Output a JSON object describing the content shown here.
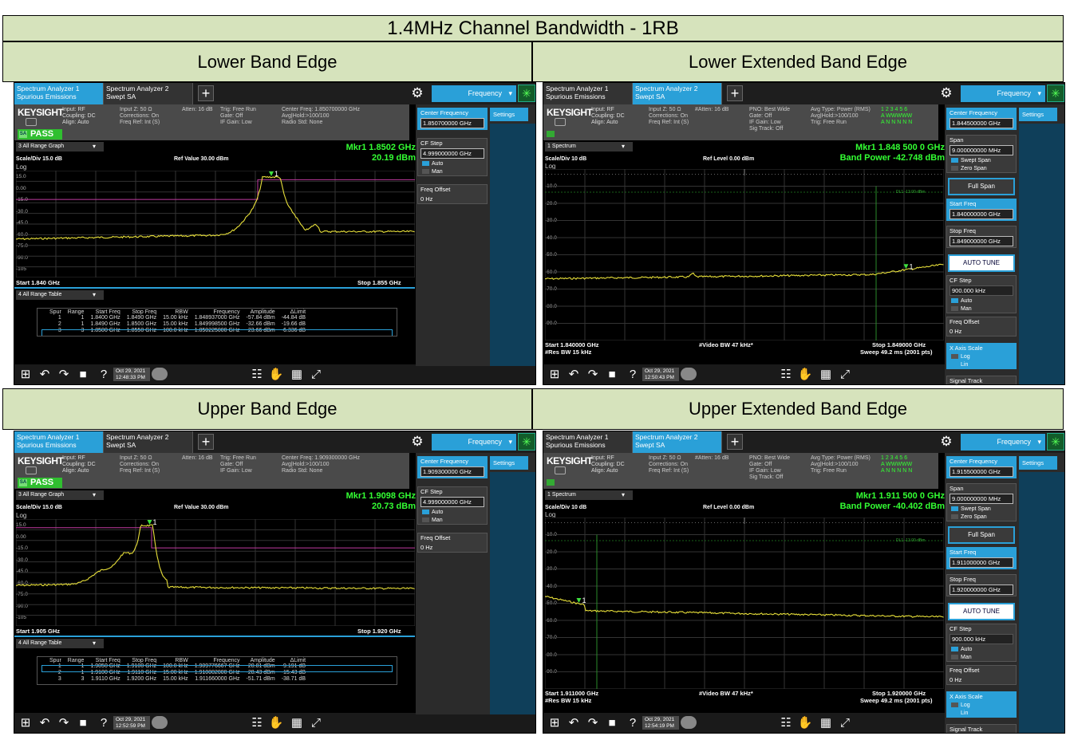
{
  "title": "1.4MHz Channel Bandwidth - 1RB",
  "headers": {
    "lower": "Lower Band Edge",
    "lower_ext": "Lower Extended Band Edge",
    "upper": "Upper Band Edge",
    "upper_ext": "Upper Extended Band Edge"
  },
  "colors": {
    "trace": "#e8e03a",
    "marker": "#3fe03f",
    "limit": "#c03aa0",
    "accent": "#2aa0d8",
    "pass": "#2fbf2f"
  },
  "common": {
    "tab1": "Spectrum Analyzer 1\nSpurious Emissions",
    "tab2": "Spectrum Analyzer 2\nSwept SA",
    "add": "+",
    "gear_icon": "gear-icon",
    "menu": "Frequency",
    "brand": "KEYSIGHT",
    "settings": "Settings",
    "pass": "PASS"
  },
  "lower": {
    "info": {
      "c1": "Input: RF\nCoupling: DC\nAlign: Auto",
      "c2": "Input Z: 50 Ω\nCorrections: On\nFreq Ref: Int (S)",
      "c3": "Atten: 16 dB",
      "c4": "Trig: Free Run\nGate: Off\nIF Gain: Low",
      "c5": "Center Freq: 1.850700000 GHz\nAvg|Hold:>100/100\nRadio Std: None"
    },
    "graph_sel": "3 All Range Graph",
    "mkr": "Mkr1  1.8502 GHz",
    "mkr_val": "20.19 dBm",
    "scale": "Scale/Div 15.0 dB",
    "ref": "Ref Value 30.00 dBm",
    "log": "Log",
    "ylabels": [
      "15.0",
      "0.00",
      "-15.0",
      "-30.0",
      "-45.0",
      "-60.0",
      "-75.0",
      "-90.0",
      "-105"
    ],
    "start": "Start 1.840 GHz",
    "stop": "Stop 1.855 GHz",
    "table_sel": "4 All Range Table",
    "table": {
      "headers": [
        "Spur",
        "Range",
        "Start Freq",
        "Stop Freq",
        "RBW",
        "Frequency",
        "Amplitude",
        "ΔLimit"
      ],
      "rows": [
        [
          "1",
          "1",
          "1.8400 GHz",
          "1.8490 GHz",
          "15.00 kHz",
          "1.848937000 GHz",
          "-57.84 dBm",
          "-44.84 dB"
        ],
        [
          "2",
          "1",
          "1.8490 GHz",
          "1.8500 GHz",
          "15.00 kHz",
          "1.849998500 GHz",
          "-32.66 dBm",
          "-19.66 dB"
        ],
        [
          "3",
          "3",
          "1.8500 GHz",
          "1.8550 GHz",
          "100.0 kHz",
          "1.850225000 GHz",
          "23.66 dBm",
          "-6.336 dB"
        ]
      ]
    },
    "side": {
      "cf_label": "Center Frequency",
      "cf_val": "1.850700000 GHz",
      "step_label": "CF Step",
      "step_val": "4.999000000 GHz",
      "auto": "Auto",
      "man": "Man",
      "offset_label": "Freq Offset",
      "offset_val": "0 Hz"
    },
    "date": "Oct 29, 2021\n12:48:33 PM"
  },
  "upper": {
    "info": {
      "c1": "Input: RF\nCoupling: DC\nAlign: Auto",
      "c2": "Input Z: 50 Ω\nCorrections: On\nFreq Ref: Int (S)",
      "c3": "Atten: 16 dB",
      "c4": "Trig: Free Run\nGate: Off\nIF Gain: Low",
      "c5": "Center Freq: 1.909300000 GHz\nAvg|Hold:>100/100\nRadio Std: None"
    },
    "graph_sel": "3 All Range Graph",
    "mkr": "Mkr1  1.9098 GHz",
    "mkr_val": "20.73 dBm",
    "scale": "Scale/Div 15.0 dB",
    "ref": "Ref Value 30.00 dBm",
    "log": "Log",
    "ylabels": [
      "15.0",
      "0.00",
      "-15.0",
      "-30.0",
      "-45.0",
      "-60.0",
      "-75.0",
      "-90.0",
      "-105"
    ],
    "start": "Start 1.905 GHz",
    "stop": "Stop 1.920 GHz",
    "table_sel": "4 All Range Table",
    "table": {
      "headers": [
        "Spur",
        "Range",
        "Start Freq",
        "Stop Freq",
        "RBW",
        "Frequency",
        "Amplitude",
        "ΔLimit"
      ],
      "rows": [
        [
          "1",
          "1",
          "1.9050 GHz",
          "1.9100 GHz",
          "100.0 kHz",
          "1.909776667 GHz",
          "20.81 dBm",
          "-9.191 dB"
        ],
        [
          "2",
          "1",
          "1.9100 GHz",
          "1.9110 GHz",
          "15.00 kHz",
          "1.910002000 GHz",
          "-28.43 dBm",
          "-15.43 dB"
        ],
        [
          "3",
          "3",
          "1.9110 GHz",
          "1.9200 GHz",
          "15.00 kHz",
          "1.911660000 GHz",
          "-51.71 dBm",
          "-38.71 dB"
        ]
      ]
    },
    "side": {
      "cf_label": "Center Frequency",
      "cf_val": "1.909300000 GHz",
      "step_label": "CF Step",
      "step_val": "4.999000000 GHz",
      "auto": "Auto",
      "man": "Man",
      "offset_label": "Freq Offset",
      "offset_val": "0 Hz"
    },
    "date": "Oct 29, 2021\n12:52:59 PM"
  },
  "lower_ext": {
    "info": {
      "c1": "Input: RF\nCoupling: DC\nAlign: Auto",
      "c2": "Input Z: 50 Ω\nCorrections: On\nFreq Ref: Int (S)",
      "c3": "#Atten: 16 dB",
      "c4": "PNO: Best Wide\nGate: Off\nIF Gain: Low\nSig Track: Off",
      "c5": "Avg Type: Power (RMS)\nAvg|Hold:>100/100\nTrig: Free Run",
      "trace": "1 2 3 4 5 6\nA WWWWW\nA N N N N N"
    },
    "graph_sel": "1 Spectrum",
    "mkr": "Mkr1  1.848 500 0 GHz",
    "mkr_val": "Band Power  -42.748 dBm",
    "scale": "Scale/Div 10 dB",
    "ref": "Ref Level 0.00 dBm",
    "log": "Log",
    "limit_label": "DL1 -13.00 dBm",
    "ylabels": [
      "-10.0",
      "-20.0",
      "-30.0",
      "-40.0",
      "-50.0",
      "-60.0",
      "-70.0",
      "-80.0",
      "-90.0"
    ],
    "start": "Start 1.840000 GHz",
    "res": "#Res BW 15 kHz",
    "vbw": "#Video BW 47 kHz*",
    "stop": "Stop 1.849000 GHz",
    "sweep": "Sweep 49.2 ms (2001 pts)",
    "side": {
      "cf_label": "Center Frequency",
      "cf_val": "1.844500000 GHz",
      "span_label": "Span",
      "span_val": "9.000000000 MHz",
      "swept": "Swept Span",
      "zero": "Zero Span",
      "full": "Full Span",
      "start_label": "Start Freq",
      "start_val": "1.840000000 GHz",
      "stop_label": "Stop Freq",
      "stop_val": "1.849000000 GHz",
      "autotune": "AUTO TUNE",
      "step_label": "CF Step",
      "step_val": "900.000 kHz",
      "auto": "Auto",
      "man": "Man",
      "offset_label": "Freq Offset",
      "offset_val": "0 Hz",
      "xaxis_label": "X Axis Scale",
      "xlog": "Log",
      "xlin": "Lin",
      "sigtrack": "Signal Track\n(Span Zoom)"
    },
    "date": "Oct 29, 2021\n12:50:43 PM"
  },
  "upper_ext": {
    "info": {
      "c1": "Input: RF\nCoupling: DC\nAlign: Auto",
      "c2": "Input Z: 50 Ω\nCorrections: On\nFreq Ref: Int (S)",
      "c3": "#Atten: 16 dB",
      "c4": "PNO: Best Wide\nGate: Off\nIF Gain: Low\nSig Track: Off",
      "c5": "Avg Type: Power (RMS)\nAvg|Hold:>100/100\nTrig: Free Run",
      "trace": "1 2 3 4 5 6\nA WWWWW\nA N N N N N"
    },
    "graph_sel": "1 Spectrum",
    "mkr": "Mkr1  1.911 500 0 GHz",
    "mkr_val": "Band Power  -40.402 dBm",
    "scale": "Scale/Div 10 dB",
    "ref": "Ref Level 0.00 dBm",
    "log": "Log",
    "limit_label": "DL1 -13.00 dBm",
    "ylabels": [
      "-10.0",
      "-20.0",
      "-30.0",
      "-40.0",
      "-50.0",
      "-60.0",
      "-70.0",
      "-80.0",
      "-90.0"
    ],
    "start": "Start 1.911000 GHz",
    "res": "#Res BW 15 kHz",
    "vbw": "#Video BW 47 kHz*",
    "stop": "Stop 1.920000 GHz",
    "sweep": "Sweep 49.2 ms (2001 pts)",
    "side": {
      "cf_label": "Center Frequency",
      "cf_val": "1.915500000 GHz",
      "span_label": "Span",
      "span_val": "9.000000000 MHz",
      "swept": "Swept Span",
      "zero": "Zero Span",
      "full": "Full Span",
      "start_label": "Start Freq",
      "start_val": "1.911000000 GHz",
      "stop_label": "Stop Freq",
      "stop_val": "1.920000000 GHz",
      "autotune": "AUTO TUNE",
      "step_label": "CF Step",
      "step_val": "900.000 kHz",
      "auto": "Auto",
      "man": "Man",
      "offset_label": "Freq Offset",
      "offset_val": "0 Hz",
      "xaxis_label": "X Axis Scale",
      "xlog": "Log",
      "xlin": "Lin",
      "sigtrack": "Signal Track\n(Span Zoom)"
    },
    "date": "Oct 29, 2021\n12:54:19 PM"
  }
}
